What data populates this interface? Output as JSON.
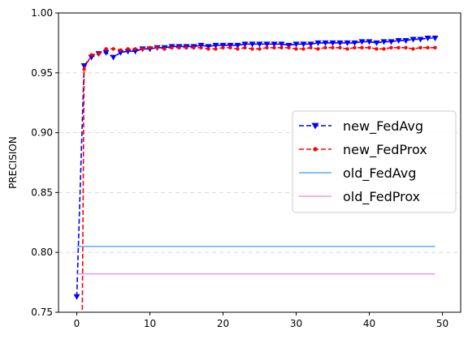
{
  "chart_data": {
    "type": "line",
    "title": "",
    "xlabel": "",
    "ylabel": "PRECISION",
    "xlim": [
      -2.5,
      52.5
    ],
    "ylim": [
      0.75,
      1.0
    ],
    "xticks": [
      0,
      10,
      20,
      30,
      40,
      50
    ],
    "yticks": [
      0.75,
      0.8,
      0.85,
      0.9,
      0.95,
      1.0
    ],
    "xtick_labels": [
      "0",
      "10",
      "20",
      "30",
      "40",
      "50"
    ],
    "ytick_labels": [
      "0.75",
      "0.80",
      "0.85",
      "0.90",
      "0.95",
      "1.00"
    ],
    "grid": "horizontal dashed",
    "legend_position": "center-right",
    "series": [
      {
        "name": "new_FedAvg",
        "color": "#0000ff",
        "style": "dashed",
        "marker": "triangle-down",
        "x": [
          0,
          1,
          2,
          3,
          4,
          5,
          6,
          7,
          8,
          9,
          10,
          11,
          12,
          13,
          14,
          15,
          16,
          17,
          18,
          19,
          20,
          21,
          22,
          23,
          24,
          25,
          26,
          27,
          28,
          29,
          30,
          31,
          32,
          33,
          34,
          35,
          36,
          37,
          38,
          39,
          40,
          41,
          42,
          43,
          44,
          45,
          46,
          47,
          48,
          49
        ],
        "values": [
          0.763,
          0.956,
          0.963,
          0.966,
          0.967,
          0.963,
          0.967,
          0.968,
          0.968,
          0.97,
          0.97,
          0.971,
          0.971,
          0.972,
          0.972,
          0.972,
          0.972,
          0.973,
          0.972,
          0.973,
          0.973,
          0.973,
          0.973,
          0.974,
          0.974,
          0.974,
          0.974,
          0.974,
          0.974,
          0.973,
          0.974,
          0.974,
          0.974,
          0.975,
          0.975,
          0.975,
          0.975,
          0.975,
          0.975,
          0.976,
          0.976,
          0.975,
          0.976,
          0.976,
          0.977,
          0.977,
          0.978,
          0.978,
          0.979,
          0.979
        ]
      },
      {
        "name": "new_FedProx",
        "color": "#ff0000",
        "style": "dashed",
        "marker": "dot",
        "x": [
          1,
          2,
          3,
          4,
          5,
          6,
          7,
          8,
          9,
          10,
          11,
          12,
          13,
          14,
          15,
          16,
          17,
          18,
          19,
          20,
          21,
          22,
          23,
          24,
          25,
          26,
          27,
          28,
          29,
          30,
          31,
          32,
          33,
          34,
          35,
          36,
          37,
          38,
          39,
          40,
          41,
          42,
          43,
          44,
          45,
          46,
          47,
          48,
          49
        ],
        "values": [
          0.953,
          0.965,
          0.966,
          0.97,
          0.97,
          0.969,
          0.97,
          0.97,
          0.97,
          0.971,
          0.971,
          0.97,
          0.971,
          0.971,
          0.971,
          0.971,
          0.971,
          0.97,
          0.97,
          0.971,
          0.971,
          0.97,
          0.971,
          0.97,
          0.97,
          0.971,
          0.971,
          0.971,
          0.971,
          0.97,
          0.97,
          0.971,
          0.97,
          0.971,
          0.971,
          0.971,
          0.97,
          0.971,
          0.971,
          0.971,
          0.97,
          0.97,
          0.971,
          0.971,
          0.971,
          0.97,
          0.971,
          0.971,
          0.971
        ],
        "entry_from": 0.75,
        "entry_x": 0.75
      },
      {
        "name": "old_FedAvg",
        "color": "#5aaeee",
        "style": "solid",
        "marker": "none",
        "x": [
          0,
          49
        ],
        "values": [
          0.805,
          0.805
        ]
      },
      {
        "name": "old_FedProx",
        "color": "#ee9aee",
        "style": "solid",
        "marker": "none",
        "x": [
          0,
          49
        ],
        "values": [
          0.782,
          0.782
        ]
      }
    ]
  }
}
